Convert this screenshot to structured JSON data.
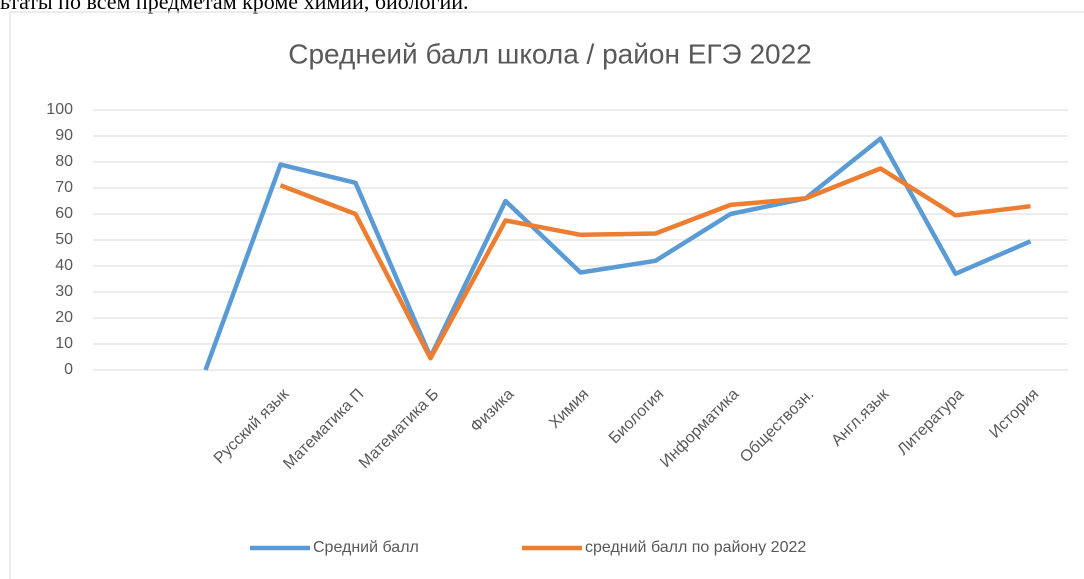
{
  "header_text": "ьтаты по всем предметам кроме химии, биологии.",
  "chart_data": {
    "type": "line",
    "title": "Среднеий балл школа / район ЕГЭ 2022",
    "categories": [
      null,
      null,
      "Русский язык",
      "Математика П",
      "Математика Б",
      "Физика",
      "Химия",
      "Биология",
      "Информатика",
      "Обществозн.",
      "Англ.язык",
      "Литература",
      "История"
    ],
    "series": [
      {
        "name": "Средний балл",
        "color": "#5b9bd5",
        "values": [
          null,
          0,
          79,
          72,
          5,
          65,
          37.5,
          42,
          60,
          66,
          89,
          37,
          49.5
        ]
      },
      {
        "name": "средний балл по району 2022",
        "color": "#ed7d31",
        "values": [
          null,
          null,
          71,
          60,
          4.5,
          57.5,
          52,
          52.5,
          63.5,
          66,
          77.5,
          59.5,
          63
        ]
      }
    ],
    "ylim": [
      0,
      100
    ],
    "yticks": [
      0,
      10,
      20,
      30,
      40,
      50,
      60,
      70,
      80,
      90,
      100
    ],
    "grid": true,
    "legend": "bottom"
  }
}
